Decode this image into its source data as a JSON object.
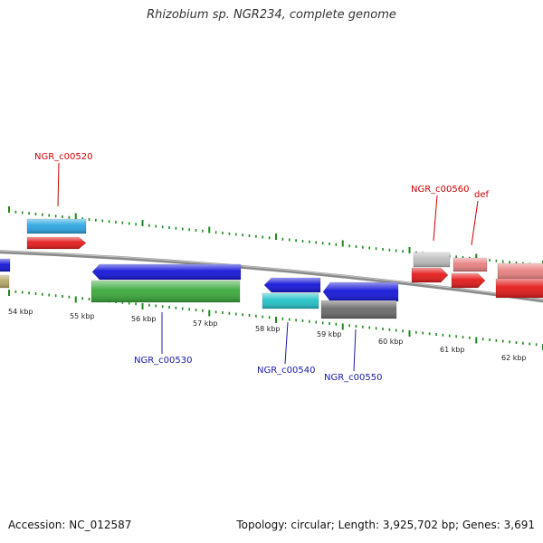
{
  "title": "Rhizobium sp. NGR234, complete genome",
  "footer": {
    "accession": "Accession: NC_012587",
    "stats": "Topology: circular; Length: 3,925,702 bp; Genes: 3,691"
  },
  "colors": {
    "top_label": "#cc0000",
    "bottom_label": "#1a1aa6",
    "backbone": "#8a8a8a",
    "tick_major": "#1f8a1f",
    "tick_minor": "#1f8a1f"
  },
  "scale": {
    "ticks": [
      {
        "label": "54 kbp"
      },
      {
        "label": "55 kbp"
      },
      {
        "label": "56 kbp"
      },
      {
        "label": "57 kbp"
      },
      {
        "label": "58 kbp"
      },
      {
        "label": "59 kbp"
      },
      {
        "label": "60 kbp"
      },
      {
        "label": "61 kbp"
      },
      {
        "label": "62 kbp"
      }
    ]
  },
  "genes": [
    {
      "id": "g-top-blue",
      "color": "#2aa6e0",
      "shape": "box",
      "strand": "top"
    },
    {
      "id": "g-top-red",
      "color": "#e31a1a",
      "shape": "arrow-right",
      "strand": "top"
    },
    {
      "id": "g-left-blue",
      "color": "#1515d8",
      "shape": "box",
      "strand": "bottom"
    },
    {
      "id": "g-left-olive",
      "color": "#b5a766",
      "shape": "box",
      "strand": "bottom"
    },
    {
      "id": "g-530-blue",
      "color": "#1515d8",
      "shape": "arrow-left",
      "strand": "bottom"
    },
    {
      "id": "g-530-green",
      "color": "#3aa93a",
      "shape": "box",
      "strand": "bottom"
    },
    {
      "id": "g-540-blue",
      "color": "#1515d8",
      "shape": "arrow-left",
      "strand": "bottom"
    },
    {
      "id": "g-540-cyan",
      "color": "#22c3c8",
      "shape": "box",
      "strand": "bottom"
    },
    {
      "id": "g-550-blue",
      "color": "#1515d8",
      "shape": "arrow-left",
      "strand": "bottom"
    },
    {
      "id": "g-550-gray",
      "color": "#6a6a6a",
      "shape": "box",
      "strand": "bottom"
    },
    {
      "id": "g-560-gray",
      "color": "#bdbdbd",
      "shape": "box",
      "strand": "top"
    },
    {
      "id": "g-560-red",
      "color": "#e31a1a",
      "shape": "arrow-right",
      "strand": "top"
    },
    {
      "id": "g-def-pink",
      "color": "#e88080",
      "shape": "box",
      "strand": "top"
    },
    {
      "id": "g-def-red",
      "color": "#e31a1a",
      "shape": "arrow-right",
      "strand": "top"
    },
    {
      "id": "g-right-pink",
      "color": "#e88080",
      "shape": "box",
      "strand": "top"
    },
    {
      "id": "g-right-red",
      "color": "#e31a1a",
      "shape": "box",
      "strand": "top"
    }
  ],
  "labels": {
    "top": [
      {
        "text": "NGR_c00520"
      },
      {
        "text": "NGR_c00560"
      },
      {
        "text": "def"
      }
    ],
    "bottom": [
      {
        "text": "NGR_c00530"
      },
      {
        "text": "NGR_c00540"
      },
      {
        "text": "NGR_c00550"
      }
    ]
  }
}
